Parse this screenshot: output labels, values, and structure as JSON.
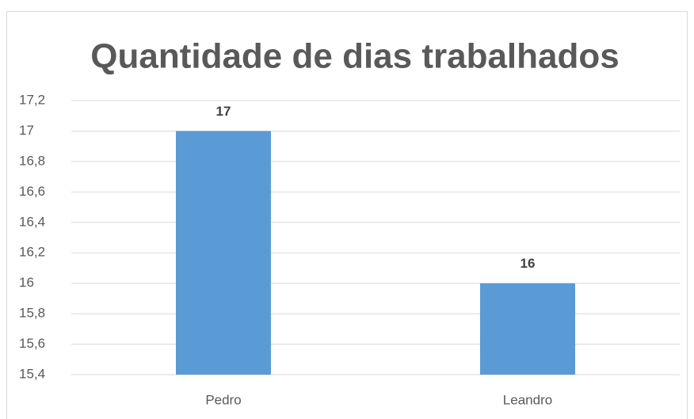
{
  "chart_data": {
    "type": "bar",
    "title": "Quantidade de dias trabalhados",
    "categories": [
      "Pedro",
      "Leandro"
    ],
    "values": [
      17,
      16
    ],
    "color": "#5b9bd5",
    "ylim": [
      15.4,
      17.2
    ],
    "yticks": [
      {
        "value": 15.4,
        "label": "15,4"
      },
      {
        "value": 15.6,
        "label": "15,6"
      },
      {
        "value": 15.8,
        "label": "15,8"
      },
      16,
      {
        "value": 16.2,
        "label": "16,2"
      },
      {
        "value": 16.4,
        "label": "16,4"
      },
      {
        "value": 16.6,
        "label": "16,6"
      },
      {
        "value": 16.8,
        "label": "16,8"
      },
      17,
      {
        "value": 17.2,
        "label": "17,2"
      }
    ],
    "grid": true
  }
}
